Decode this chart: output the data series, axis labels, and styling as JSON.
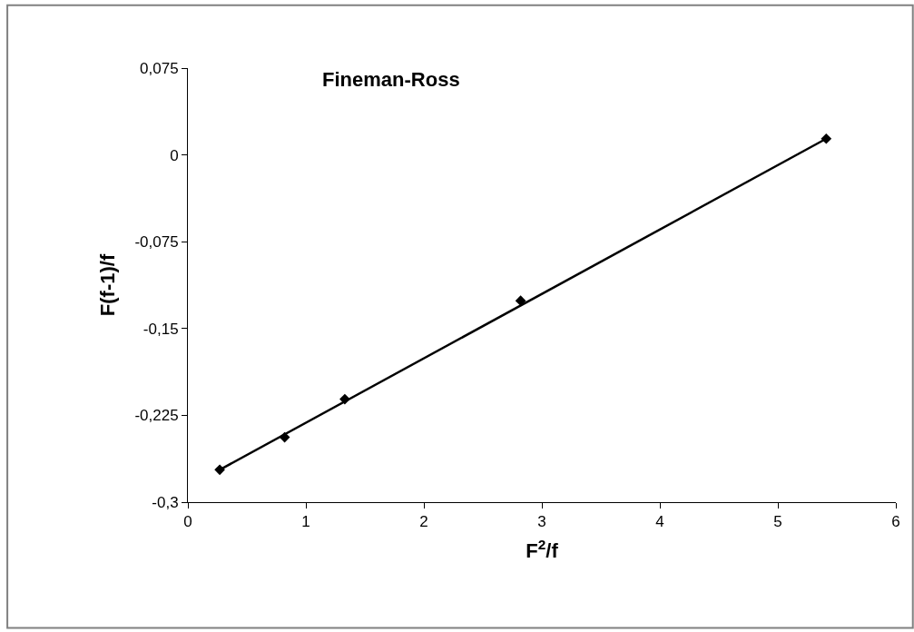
{
  "chart_data": {
    "type": "scatter",
    "title": "Fineman-Ross",
    "xlabel": "F$^{2}$/f",
    "ylabel": "F(f-1)/f",
    "x": [
      0.27,
      0.82,
      1.33,
      2.82,
      5.41
    ],
    "series": [
      {
        "color": "#000000",
        "values": [
          -0.272,
          -0.244,
          -0.211,
          -0.126,
          0.014
        ]
      },
      {
        "type": "line",
        "color": "#000000",
        "marker": "none",
        "line_style": "solid",
        "x": [
          0.27,
          5.41
        ],
        "values": [
          -0.272,
          0.014
        ]
      }
    ],
    "xlim": [
      0,
      6
    ],
    "xticks": [
      0,
      1,
      2,
      3,
      4,
      5,
      6
    ],
    "ylim": [
      -0.3,
      0.075
    ],
    "yticks": [
      {
        "value": -0.3,
        "label": "-0,3"
      },
      {
        "value": -0.225,
        "label": "-0,225"
      },
      {
        "value": -0.15,
        "label": "-0,15"
      },
      {
        "value": -0.075,
        "label": "-0,075"
      },
      {
        "value": 0,
        "label": "0"
      },
      {
        "value": 0.075,
        "label": "0,075"
      }
    ],
    "marker": "diamond"
  }
}
